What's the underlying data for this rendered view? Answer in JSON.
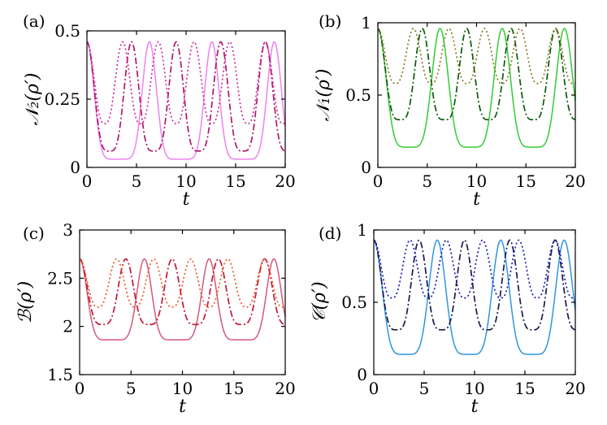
{
  "chart_data": [
    {
      "panel": "(a)",
      "type": "line",
      "xlabel": "t",
      "ylabel": "𝒩₂(ρ′)",
      "xlim": [
        0,
        20
      ],
      "ylim": [
        0,
        0.5
      ],
      "xticks": [
        "0",
        "5",
        "10",
        "15",
        "20"
      ],
      "yticks": [
        "0",
        "0.25",
        "0.5"
      ],
      "ytick_values": [
        0,
        0.25,
        0.5
      ],
      "series": [
        {
          "style": "solid",
          "color": "#ee82ee",
          "period": 6.3,
          "phase": 0,
          "min": 0.03,
          "max": 0.46,
          "shape": 4
        },
        {
          "style": "dashdot",
          "color": "#b0186b",
          "period": 4.5,
          "phase": 0,
          "min": 0.06,
          "max": 0.46,
          "shape": 2
        },
        {
          "style": "dotted",
          "color": "#cc2ea0",
          "period": 3.6,
          "phase": 0,
          "min": 0.16,
          "max": 0.46,
          "shape": 1.4
        }
      ]
    },
    {
      "panel": "(b)",
      "type": "line",
      "xlabel": "t",
      "ylabel": "𝒩₁(ρ′)",
      "xlim": [
        0,
        20
      ],
      "ylim": [
        0,
        1
      ],
      "xticks": [
        "0",
        "5",
        "10",
        "15",
        "20"
      ],
      "yticks": [
        "0",
        "0.5",
        "1"
      ],
      "ytick_values": [
        0,
        0.5,
        1
      ],
      "series": [
        {
          "style": "solid",
          "color": "#33cc33",
          "period": 6.3,
          "phase": 0,
          "min": 0.14,
          "max": 0.96,
          "shape": 3
        },
        {
          "style": "dashdot",
          "color": "#0b5a0b",
          "period": 4.5,
          "phase": 0,
          "min": 0.33,
          "max": 0.96,
          "shape": 2
        },
        {
          "style": "dotted",
          "color": "#8b7a1e",
          "period": 3.6,
          "phase": 0,
          "min": 0.58,
          "max": 0.96,
          "shape": 1.4
        }
      ]
    },
    {
      "panel": "(c)",
      "type": "line",
      "xlabel": "t",
      "ylabel": "ℬ(ρ′)",
      "xlim": [
        0,
        20
      ],
      "ylim": [
        1.5,
        3
      ],
      "xticks": [
        "0",
        "5",
        "10",
        "15",
        "20"
      ],
      "yticks": [
        "1.5",
        "2",
        "2.5",
        "3"
      ],
      "ytick_values": [
        1.5,
        2,
        2.5,
        3
      ],
      "series": [
        {
          "style": "solid",
          "color": "#d4587a",
          "period": 6.3,
          "phase": 0,
          "min": 1.86,
          "max": 2.7,
          "shape": 4
        },
        {
          "style": "dashdot",
          "color": "#c81438",
          "period": 4.5,
          "phase": 0,
          "min": 2.02,
          "max": 2.7,
          "shape": 2
        },
        {
          "style": "dotted",
          "color": "#ee5a20",
          "period": 3.6,
          "phase": 0,
          "min": 2.2,
          "max": 2.7,
          "shape": 1.4
        }
      ]
    },
    {
      "panel": "(d)",
      "type": "line",
      "xlabel": "t",
      "ylabel": "𝒞(ρ′)",
      "xlim": [
        0,
        20
      ],
      "ylim": [
        0,
        1
      ],
      "xticks": [
        "0",
        "5",
        "10",
        "15",
        "20"
      ],
      "yticks": [
        "0",
        "0.5",
        "1"
      ],
      "ytick_values": [
        0,
        0.5,
        1
      ],
      "series": [
        {
          "style": "solid",
          "color": "#2f96e0",
          "period": 6.3,
          "phase": 0,
          "min": 0.14,
          "max": 0.93,
          "shape": 3
        },
        {
          "style": "dashdot",
          "color": "#1a1a4e",
          "period": 4.5,
          "phase": 0,
          "min": 0.31,
          "max": 0.93,
          "shape": 2
        },
        {
          "style": "dotted",
          "color": "#1818c0",
          "period": 3.6,
          "phase": 0,
          "min": 0.53,
          "max": 0.93,
          "shape": 1.4
        }
      ]
    }
  ]
}
